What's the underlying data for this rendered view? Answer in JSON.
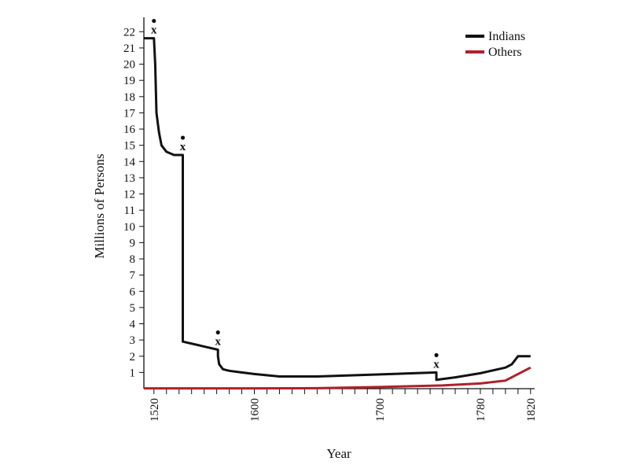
{
  "chart_data": {
    "type": "line",
    "xlabel": "Year",
    "ylabel": "Millions of Persons",
    "xlim": [
      1512,
      1822
    ],
    "ylim": [
      0,
      22.5
    ],
    "x_tick_labels": [
      {
        "x": 1520,
        "label": "1520"
      },
      {
        "x": 1600,
        "label": "1600"
      },
      {
        "x": 1700,
        "label": "1700"
      },
      {
        "x": 1780,
        "label": "1780"
      },
      {
        "x": 1820,
        "label": "1820"
      }
    ],
    "x_minor_ticks": [
      1520,
      1530,
      1540,
      1550,
      1560,
      1570,
      1580,
      1590,
      1600,
      1610,
      1620,
      1630,
      1640,
      1650,
      1660,
      1670,
      1680,
      1690,
      1700,
      1710,
      1720,
      1730,
      1740,
      1750,
      1760,
      1770,
      1780,
      1790,
      1800,
      1810,
      1820
    ],
    "y_ticks": [
      1,
      2,
      3,
      4,
      5,
      6,
      7,
      8,
      9,
      10,
      11,
      12,
      13,
      14,
      15,
      16,
      17,
      18,
      19,
      20,
      21,
      22
    ],
    "grid": false,
    "legend": {
      "position": "top-right",
      "items": [
        {
          "name": "Indians",
          "color": "#111111"
        },
        {
          "name": "Others",
          "color": "#b0202a"
        }
      ]
    },
    "series": [
      {
        "name": "Indians",
        "color": "#111111",
        "points": [
          [
            1512,
            21.6
          ],
          [
            1520,
            21.6
          ],
          [
            1521,
            20.0
          ],
          [
            1522,
            17.0
          ],
          [
            1524,
            15.8
          ],
          [
            1526,
            15.0
          ],
          [
            1530,
            14.6
          ],
          [
            1536,
            14.4
          ],
          [
            1543,
            14.4
          ],
          [
            1543,
            2.9
          ],
          [
            1560,
            2.6
          ],
          [
            1571,
            2.4
          ],
          [
            1571,
            2.0
          ],
          [
            1572,
            1.5
          ],
          [
            1575,
            1.2
          ],
          [
            1580,
            1.1
          ],
          [
            1590,
            1.0
          ],
          [
            1600,
            0.9
          ],
          [
            1620,
            0.75
          ],
          [
            1650,
            0.75
          ],
          [
            1700,
            0.88
          ],
          [
            1745,
            1.0
          ],
          [
            1745,
            0.55
          ],
          [
            1760,
            0.7
          ],
          [
            1780,
            0.95
          ],
          [
            1800,
            1.3
          ],
          [
            1805,
            1.5
          ],
          [
            1810,
            2.0
          ],
          [
            1820,
            2.0
          ]
        ]
      },
      {
        "name": "Others",
        "color": "#b0202a",
        "points": [
          [
            1512,
            0.02
          ],
          [
            1600,
            0.02
          ],
          [
            1650,
            0.03
          ],
          [
            1700,
            0.1
          ],
          [
            1750,
            0.2
          ],
          [
            1780,
            0.32
          ],
          [
            1800,
            0.5
          ],
          [
            1810,
            0.9
          ],
          [
            1820,
            1.3
          ]
        ]
      }
    ],
    "annotations": [
      {
        "x": 1520,
        "y": 21.6,
        "label": "x"
      },
      {
        "x": 1543,
        "y": 14.4,
        "label": "x"
      },
      {
        "x": 1571,
        "y": 2.4,
        "label": "x"
      },
      {
        "x": 1745,
        "y": 1.0,
        "label": "x"
      }
    ]
  }
}
